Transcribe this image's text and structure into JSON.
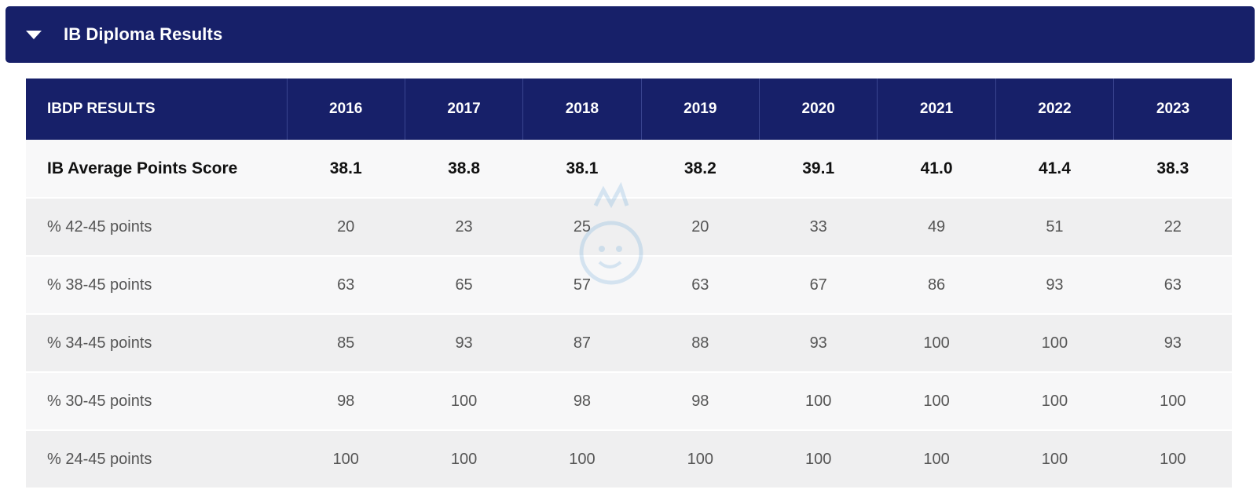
{
  "accordion": {
    "title": "IB Diploma Results",
    "icon": "caret-down-icon"
  },
  "table": {
    "header": {
      "first": "IBDP RESULTS",
      "years": [
        "2016",
        "2017",
        "2018",
        "2019",
        "2020",
        "2021",
        "2022",
        "2023"
      ]
    },
    "rows": [
      {
        "label": "IB Average Points Score",
        "values": [
          "38.1",
          "38.8",
          "38.1",
          "38.2",
          "39.1",
          "41.0",
          "41.4",
          "38.3"
        ],
        "bold": true
      },
      {
        "label": "% 42-45 points",
        "values": [
          "20",
          "23",
          "25",
          "20",
          "33",
          "49",
          "51",
          "22"
        ]
      },
      {
        "label": "% 38-45 points",
        "values": [
          "63",
          "65",
          "57",
          "63",
          "67",
          "86",
          "93",
          "63"
        ]
      },
      {
        "label": "% 34-45 points",
        "values": [
          "85",
          "93",
          "87",
          "88",
          "93",
          "100",
          "100",
          "93"
        ]
      },
      {
        "label": "% 30-45 points",
        "values": [
          "98",
          "100",
          "98",
          "98",
          "100",
          "100",
          "100",
          "100"
        ]
      },
      {
        "label": "% 24-45 points",
        "values": [
          "100",
          "100",
          "100",
          "100",
          "100",
          "100",
          "100",
          "100"
        ]
      }
    ]
  },
  "colors": {
    "header_bg": "#172069",
    "header_text": "#ffffff",
    "row_light": "#f7f7f8",
    "row_dark": "#efeff0"
  }
}
